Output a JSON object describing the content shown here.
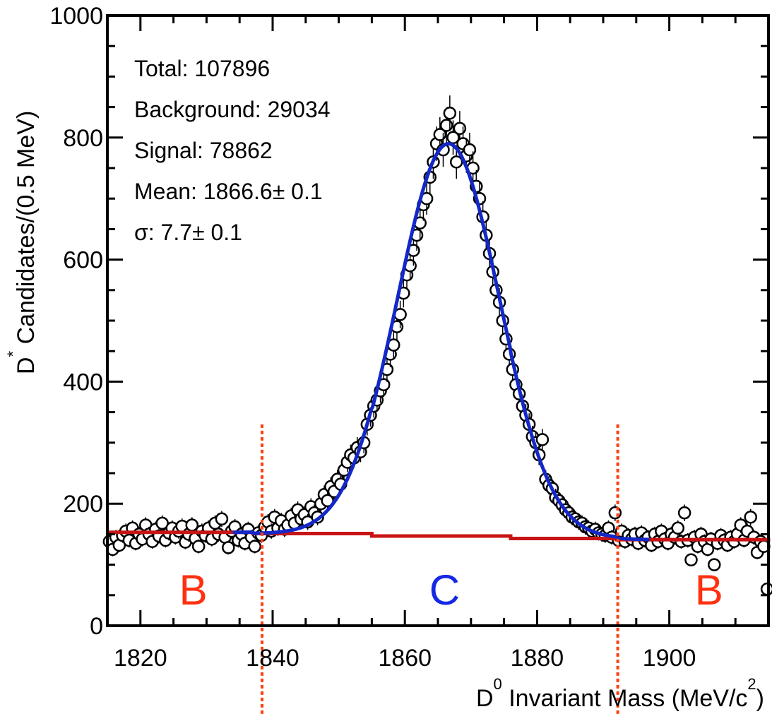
{
  "chart_data": {
    "type": "scatter",
    "xlim": [
      1815,
      1915
    ],
    "ylim": [
      0,
      1000
    ],
    "x_ticks": [
      1820,
      1840,
      1860,
      1880,
      1900
    ],
    "y_ticks": [
      0,
      200,
      400,
      600,
      800,
      1000
    ],
    "x_tick_labels": [
      "1820",
      "1840",
      "1860",
      "1880",
      "1900"
    ],
    "y_tick_labels": [
      "0",
      "200",
      "400",
      "600",
      "800",
      "1000"
    ],
    "xlabel": {
      "main": "D",
      "sup": "0",
      "rest": " Invariant Mass (MeV/c",
      "sup2": "2",
      "end": ")"
    },
    "ylabel": {
      "main": "D",
      "sup": "*",
      "rest": " Candidates/(0.5 MeV)"
    },
    "stats": {
      "total": "Total: 107896",
      "background": "Background: 29034",
      "signal": "Signal: 78862",
      "mean": "Mean: 1866.6± 0.1",
      "sigma": "σ: 7.7± 0.1"
    },
    "signal_fit": {
      "color": "#1428c8",
      "mean": 1866.6,
      "sigma": 7.7,
      "peak_total": 790
    },
    "background_fit": {
      "color": "#c81414",
      "steps": [
        {
          "x": 1815,
          "y": 153
        },
        {
          "x": 1837,
          "y": 151
        },
        {
          "x": 1855,
          "y": 147
        },
        {
          "x": 1876,
          "y": 143
        },
        {
          "x": 1892,
          "y": 141
        },
        {
          "x": 1915,
          "y": 138
        }
      ]
    },
    "region_lines": {
      "color": "#ff4010",
      "x": [
        1838.4,
        1892.2
      ],
      "y_top": 330
    },
    "region_labels": [
      {
        "text": "B",
        "x": 1828,
        "y": 60,
        "color": "#ff3010"
      },
      {
        "text": "C",
        "x": 1866,
        "y": 60,
        "color": "#1428e6"
      },
      {
        "text": "B",
        "x": 1906,
        "y": 60,
        "color": "#ff3010"
      }
    ],
    "points": [
      [
        1815.3,
        138
      ],
      [
        1815.8,
        125
      ],
      [
        1816.3,
        145
      ],
      [
        1816.8,
        132
      ],
      [
        1817.3,
        148
      ],
      [
        1817.8,
        155
      ],
      [
        1818.3,
        140
      ],
      [
        1818.8,
        160
      ],
      [
        1819.3,
        135
      ],
      [
        1819.8,
        150
      ],
      [
        1820.3,
        142
      ],
      [
        1820.8,
        165
      ],
      [
        1821.3,
        150
      ],
      [
        1821.8,
        138
      ],
      [
        1822.3,
        158
      ],
      [
        1822.8,
        147
      ],
      [
        1823.3,
        168
      ],
      [
        1823.8,
        140
      ],
      [
        1824.3,
        152
      ],
      [
        1824.8,
        160
      ],
      [
        1825.3,
        145
      ],
      [
        1825.8,
        155
      ],
      [
        1826.3,
        163
      ],
      [
        1826.8,
        137
      ],
      [
        1827.3,
        150
      ],
      [
        1827.8,
        165
      ],
      [
        1828.3,
        143
      ],
      [
        1828.8,
        130
      ],
      [
        1829.3,
        155
      ],
      [
        1829.8,
        148
      ],
      [
        1830.3,
        160
      ],
      [
        1830.8,
        142
      ],
      [
        1831.3,
        168
      ],
      [
        1831.8,
        150
      ],
      [
        1832.3,
        175
      ],
      [
        1832.8,
        145
      ],
      [
        1833.3,
        128
      ],
      [
        1833.8,
        155
      ],
      [
        1834.3,
        162
      ],
      [
        1834.8,
        140
      ],
      [
        1835.3,
        150
      ],
      [
        1835.8,
        135
      ],
      [
        1836.3,
        158
      ],
      [
        1836.8,
        145
      ],
      [
        1837.3,
        130
      ],
      [
        1837.8,
        152
      ],
      [
        1838.3,
        148
      ],
      [
        1838.8,
        162
      ],
      [
        1839.3,
        170
      ],
      [
        1839.8,
        155
      ],
      [
        1840.3,
        178
      ],
      [
        1840.8,
        160
      ],
      [
        1841.3,
        172
      ],
      [
        1841.8,
        158
      ],
      [
        1842.3,
        165
      ],
      [
        1842.8,
        180
      ],
      [
        1843.3,
        168
      ],
      [
        1843.8,
        190
      ],
      [
        1844.3,
        175
      ],
      [
        1844.8,
        182
      ],
      [
        1845.3,
        170
      ],
      [
        1845.8,
        195
      ],
      [
        1846.3,
        185
      ],
      [
        1846.8,
        178
      ],
      [
        1847.3,
        200
      ],
      [
        1847.8,
        215
      ],
      [
        1848.3,
        205
      ],
      [
        1848.8,
        228
      ],
      [
        1849.3,
        220
      ],
      [
        1849.8,
        240
      ],
      [
        1850.3,
        232
      ],
      [
        1850.8,
        255
      ],
      [
        1851.3,
        268
      ],
      [
        1851.8,
        280
      ],
      [
        1852.3,
        275
      ],
      [
        1852.8,
        292
      ],
      [
        1853.3,
        285
      ],
      [
        1853.8,
        300
      ],
      [
        1854.3,
        330
      ],
      [
        1854.8,
        345
      ],
      [
        1855.3,
        360
      ],
      [
        1855.8,
        370
      ],
      [
        1856.3,
        385
      ],
      [
        1856.8,
        395
      ],
      [
        1857.3,
        420
      ],
      [
        1857.8,
        445
      ],
      [
        1858.3,
        460
      ],
      [
        1858.8,
        490
      ],
      [
        1859.3,
        510
      ],
      [
        1859.8,
        545
      ],
      [
        1860.3,
        575
      ],
      [
        1860.8,
        590
      ],
      [
        1861.3,
        615
      ],
      [
        1861.8,
        640
      ],
      [
        1862.3,
        660
      ],
      [
        1862.8,
        690
      ],
      [
        1863.3,
        700
      ],
      [
        1863.8,
        735
      ],
      [
        1864.3,
        760
      ],
      [
        1864.8,
        790
      ],
      [
        1865.3,
        805
      ],
      [
        1865.8,
        780
      ],
      [
        1866.3,
        820
      ],
      [
        1866.8,
        840
      ],
      [
        1867.3,
        800
      ],
      [
        1867.8,
        760
      ],
      [
        1868.3,
        815
      ],
      [
        1868.8,
        790
      ],
      [
        1869.3,
        770
      ],
      [
        1869.8,
        780
      ],
      [
        1870.3,
        750
      ],
      [
        1870.8,
        720
      ],
      [
        1871.3,
        700
      ],
      [
        1871.8,
        670
      ],
      [
        1872.3,
        640
      ],
      [
        1872.8,
        610
      ],
      [
        1873.3,
        580
      ],
      [
        1873.8,
        550
      ],
      [
        1874.3,
        530
      ],
      [
        1874.8,
        500
      ],
      [
        1875.3,
        470
      ],
      [
        1875.8,
        445
      ],
      [
        1876.3,
        420
      ],
      [
        1876.8,
        395
      ],
      [
        1877.3,
        380
      ],
      [
        1877.8,
        360
      ],
      [
        1878.3,
        345
      ],
      [
        1878.8,
        330
      ],
      [
        1879.3,
        310
      ],
      [
        1879.8,
        300
      ],
      [
        1880.3,
        280
      ],
      [
        1880.8,
        305
      ],
      [
        1881.3,
        240
      ],
      [
        1881.8,
        230
      ],
      [
        1882.3,
        225
      ],
      [
        1882.8,
        210
      ],
      [
        1883.3,
        205
      ],
      [
        1883.8,
        198
      ],
      [
        1884.3,
        190
      ],
      [
        1884.8,
        185
      ],
      [
        1885.3,
        178
      ],
      [
        1885.8,
        175
      ],
      [
        1886.3,
        170
      ],
      [
        1886.8,
        168
      ],
      [
        1887.3,
        162
      ],
      [
        1887.8,
        160
      ],
      [
        1888.3,
        155
      ],
      [
        1888.8,
        158
      ],
      [
        1889.3,
        152
      ],
      [
        1889.8,
        150
      ],
      [
        1890.3,
        148
      ],
      [
        1890.8,
        160
      ],
      [
        1891.3,
        145
      ],
      [
        1891.8,
        185
      ],
      [
        1892.3,
        140
      ],
      [
        1892.8,
        155
      ],
      [
        1893.3,
        138
      ],
      [
        1893.8,
        148
      ],
      [
        1894.3,
        142
      ],
      [
        1894.8,
        150
      ],
      [
        1895.3,
        135
      ],
      [
        1895.8,
        152
      ],
      [
        1896.3,
        140
      ],
      [
        1896.8,
        145
      ],
      [
        1897.3,
        132
      ],
      [
        1897.8,
        150
      ],
      [
        1898.3,
        138
      ],
      [
        1898.8,
        155
      ],
      [
        1899.3,
        142
      ],
      [
        1899.8,
        135
      ],
      [
        1900.3,
        150
      ],
      [
        1900.8,
        145
      ],
      [
        1901.3,
        160
      ],
      [
        1901.8,
        138
      ],
      [
        1902.3,
        185
      ],
      [
        1902.8,
        140
      ],
      [
        1903.3,
        108
      ],
      [
        1903.8,
        145
      ],
      [
        1904.3,
        130
      ],
      [
        1904.8,
        150
      ],
      [
        1905.3,
        138
      ],
      [
        1905.8,
        125
      ],
      [
        1906.3,
        142
      ],
      [
        1906.8,
        100
      ],
      [
        1907.3,
        135
      ],
      [
        1907.8,
        148
      ],
      [
        1908.3,
        140
      ],
      [
        1908.8,
        132
      ],
      [
        1909.3,
        145
      ],
      [
        1909.8,
        138
      ],
      [
        1910.3,
        150
      ],
      [
        1910.8,
        165
      ],
      [
        1911.3,
        140
      ],
      [
        1911.8,
        155
      ],
      [
        1912.3,
        178
      ],
      [
        1912.8,
        145
      ],
      [
        1913.3,
        120
      ],
      [
        1913.8,
        138
      ],
      [
        1914.3,
        130
      ],
      [
        1914.8,
        60
      ]
    ]
  }
}
